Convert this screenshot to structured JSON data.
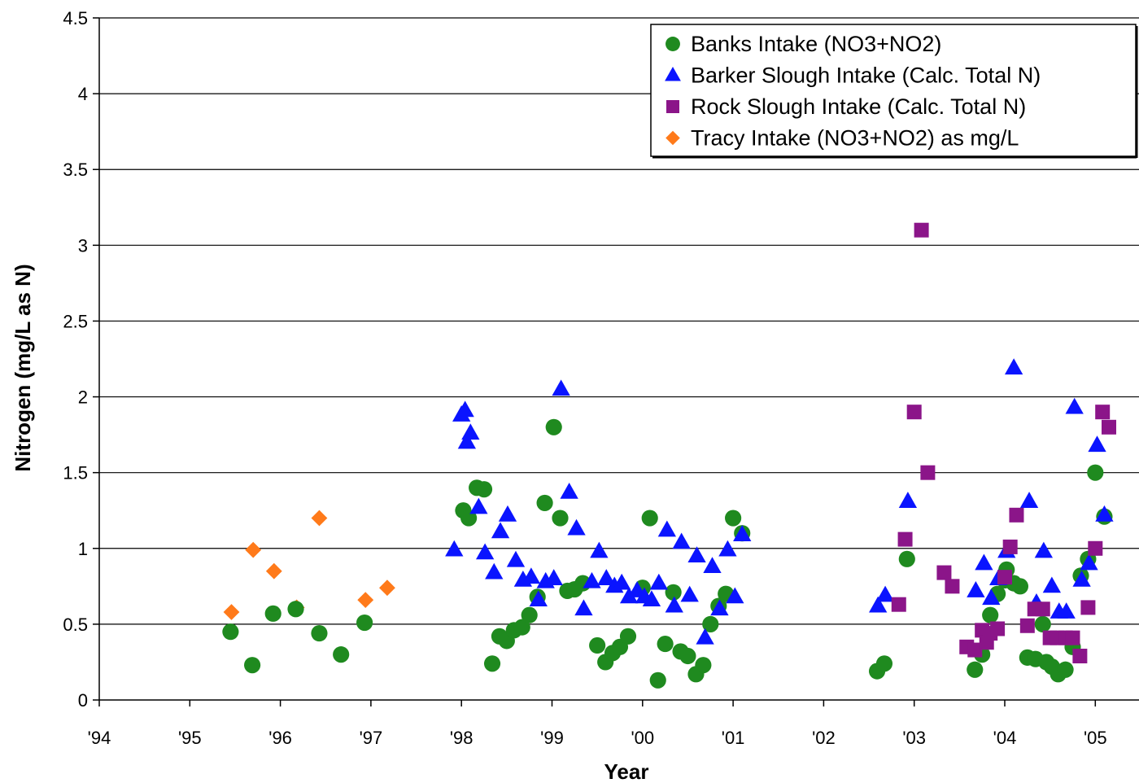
{
  "chart_data": {
    "type": "scatter",
    "title": "",
    "xlabel": "Year",
    "ylabel": "Nitrogen (mg/L as N)",
    "xlim": [
      1994,
      2005.5
    ],
    "ylim": [
      0,
      4.5
    ],
    "x_ticks": [
      1994,
      1995,
      1996,
      1997,
      1998,
      1999,
      2000,
      2001,
      2002,
      2003,
      2004,
      2005
    ],
    "x_tick_labels": [
      "'94",
      "'95",
      "'96",
      "'97",
      "'98",
      "'99",
      "'00",
      "'01",
      "'02",
      "'03",
      "'04",
      "'05"
    ],
    "y_ticks": [
      0,
      0.5,
      1,
      1.5,
      2,
      2.5,
      3,
      3.5,
      4,
      4.5
    ],
    "y_tick_labels": [
      "0",
      "0.5",
      "1",
      "1.5",
      "2",
      "2.5",
      "3",
      "3.5",
      "4",
      "4.5"
    ],
    "grid": "horizontal",
    "legend_position": "top-right",
    "series": [
      {
        "name": "Banks Intake (NO3+NO2)",
        "marker": "circle",
        "color": "#1f8a1f",
        "points": [
          [
            1995.45,
            0.45
          ],
          [
            1995.69,
            0.23
          ],
          [
            1995.92,
            0.57
          ],
          [
            1996.17,
            0.6
          ],
          [
            1996.43,
            0.44
          ],
          [
            1996.67,
            0.3
          ],
          [
            1996.93,
            0.51
          ],
          [
            1998.02,
            1.25
          ],
          [
            1998.08,
            1.2
          ],
          [
            1998.17,
            1.4
          ],
          [
            1998.25,
            1.39
          ],
          [
            1998.34,
            0.24
          ],
          [
            1998.42,
            0.42
          ],
          [
            1998.5,
            0.39
          ],
          [
            1998.58,
            0.46
          ],
          [
            1998.67,
            0.48
          ],
          [
            1998.75,
            0.56
          ],
          [
            1998.84,
            0.68
          ],
          [
            1998.92,
            1.3
          ],
          [
            1999.02,
            1.8
          ],
          [
            1999.09,
            1.2
          ],
          [
            1999.17,
            0.72
          ],
          [
            1999.25,
            0.73
          ],
          [
            1999.34,
            0.77
          ],
          [
            1999.5,
            0.36
          ],
          [
            1999.59,
            0.25
          ],
          [
            1999.67,
            0.31
          ],
          [
            1999.75,
            0.35
          ],
          [
            1999.84,
            0.42
          ],
          [
            2000.0,
            0.74
          ],
          [
            2000.08,
            1.2
          ],
          [
            2000.17,
            0.13
          ],
          [
            2000.25,
            0.37
          ],
          [
            2000.34,
            0.71
          ],
          [
            2000.42,
            0.32
          ],
          [
            2000.5,
            0.29
          ],
          [
            2000.59,
            0.17
          ],
          [
            2000.67,
            0.23
          ],
          [
            2000.75,
            0.5
          ],
          [
            2000.84,
            0.62
          ],
          [
            2000.92,
            0.7
          ],
          [
            2001.0,
            1.2
          ],
          [
            2001.1,
            1.1
          ],
          [
            2002.59,
            0.19
          ],
          [
            2002.67,
            0.24
          ],
          [
            2002.92,
            0.93
          ],
          [
            2003.67,
            0.2
          ],
          [
            2003.75,
            0.3
          ],
          [
            2003.84,
            0.56
          ],
          [
            2003.92,
            0.7
          ],
          [
            2004.0,
            0.79
          ],
          [
            2004.02,
            0.86
          ],
          [
            2004.1,
            0.77
          ],
          [
            2004.17,
            0.75
          ],
          [
            2004.25,
            0.28
          ],
          [
            2004.34,
            0.27
          ],
          [
            2004.42,
            0.5
          ],
          [
            2004.46,
            0.25
          ],
          [
            2004.52,
            0.22
          ],
          [
            2004.59,
            0.17
          ],
          [
            2004.67,
            0.2
          ],
          [
            2004.75,
            0.35
          ],
          [
            2004.84,
            0.82
          ],
          [
            2004.92,
            0.93
          ],
          [
            2005.0,
            1.5
          ],
          [
            2005.1,
            1.21
          ]
        ]
      },
      {
        "name": "Barker Slough Intake (Calc. Total N)",
        "marker": "triangle",
        "color": "#0a14ff",
        "points": [
          [
            1997.92,
            0.99
          ],
          [
            1998.0,
            1.88
          ],
          [
            1998.04,
            1.91
          ],
          [
            1998.06,
            1.7
          ],
          [
            1998.1,
            1.76
          ],
          [
            1998.19,
            1.27
          ],
          [
            1998.26,
            0.97
          ],
          [
            1998.36,
            0.84
          ],
          [
            1998.43,
            1.11
          ],
          [
            1998.51,
            1.22
          ],
          [
            1998.6,
            0.92
          ],
          [
            1998.68,
            0.79
          ],
          [
            1998.77,
            0.81
          ],
          [
            1998.85,
            0.66
          ],
          [
            1998.93,
            0.78
          ],
          [
            1999.02,
            0.8
          ],
          [
            1999.1,
            2.05
          ],
          [
            1999.19,
            1.37
          ],
          [
            1999.27,
            1.13
          ],
          [
            1999.35,
            0.6
          ],
          [
            1999.44,
            0.78
          ],
          [
            1999.52,
            0.98
          ],
          [
            1999.6,
            0.8
          ],
          [
            1999.69,
            0.75
          ],
          [
            1999.77,
            0.77
          ],
          [
            1999.85,
            0.68
          ],
          [
            1999.94,
            0.72
          ],
          [
            2000.02,
            0.68
          ],
          [
            2000.1,
            0.66
          ],
          [
            2000.18,
            0.77
          ],
          [
            2000.27,
            1.12
          ],
          [
            2000.35,
            0.62
          ],
          [
            2000.43,
            1.04
          ],
          [
            2000.52,
            0.69
          ],
          [
            2000.6,
            0.95
          ],
          [
            2000.69,
            0.41
          ],
          [
            2000.77,
            0.88
          ],
          [
            2000.85,
            0.6
          ],
          [
            2000.94,
            0.99
          ],
          [
            2001.02,
            0.68
          ],
          [
            2001.1,
            1.09
          ],
          [
            2002.6,
            0.62
          ],
          [
            2002.68,
            0.69
          ],
          [
            2002.93,
            1.31
          ],
          [
            2003.68,
            0.72
          ],
          [
            2003.77,
            0.9
          ],
          [
            2003.85,
            0.67
          ],
          [
            2003.93,
            0.8
          ],
          [
            2004.02,
            0.98
          ],
          [
            2004.1,
            2.19
          ],
          [
            2004.27,
            1.31
          ],
          [
            2004.35,
            0.64
          ],
          [
            2004.43,
            0.98
          ],
          [
            2004.52,
            0.75
          ],
          [
            2004.6,
            0.58
          ],
          [
            2004.68,
            0.58
          ],
          [
            2004.77,
            1.93
          ],
          [
            2004.85,
            0.79
          ],
          [
            2004.93,
            0.9
          ],
          [
            2005.02,
            1.68
          ],
          [
            2005.1,
            1.22
          ]
        ]
      },
      {
        "name": "Rock Slough Intake (Calc. Total N)",
        "marker": "square",
        "color": "#8b1589",
        "points": [
          [
            2002.83,
            0.63
          ],
          [
            2002.9,
            1.06
          ],
          [
            2003.0,
            1.9
          ],
          [
            2003.08,
            3.1
          ],
          [
            2003.15,
            1.5
          ],
          [
            2003.33,
            0.84
          ],
          [
            2003.42,
            0.75
          ],
          [
            2003.58,
            0.35
          ],
          [
            2003.67,
            0.33
          ],
          [
            2003.75,
            0.46
          ],
          [
            2003.8,
            0.38
          ],
          [
            2003.84,
            0.44
          ],
          [
            2003.92,
            0.47
          ],
          [
            2004.0,
            0.81
          ],
          [
            2004.06,
            1.01
          ],
          [
            2004.13,
            1.22
          ],
          [
            2004.25,
            0.49
          ],
          [
            2004.33,
            0.6
          ],
          [
            2004.42,
            0.6
          ],
          [
            2004.5,
            0.41
          ],
          [
            2004.58,
            0.41
          ],
          [
            2004.67,
            0.41
          ],
          [
            2004.75,
            0.41
          ],
          [
            2004.83,
            0.29
          ],
          [
            2004.92,
            0.61
          ],
          [
            2005.0,
            1.0
          ],
          [
            2005.08,
            1.9
          ],
          [
            2005.15,
            1.8
          ]
        ]
      },
      {
        "name": "Tracy Intake (NO3+NO2) as mg/L",
        "marker": "diamond",
        "color": "#ff7a1a",
        "points": [
          [
            1995.46,
            0.58
          ],
          [
            1995.7,
            0.99
          ],
          [
            1995.93,
            0.85
          ],
          [
            1996.18,
            0.61
          ],
          [
            1996.43,
            1.2
          ],
          [
            1996.94,
            0.66
          ],
          [
            1997.18,
            0.74
          ]
        ]
      }
    ]
  }
}
